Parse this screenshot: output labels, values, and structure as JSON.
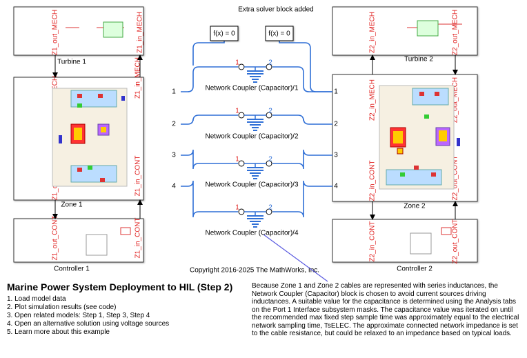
{
  "annotation": "Extra solver block added",
  "solver_blocks": [
    {
      "label": "f(x) = 0"
    },
    {
      "label": "f(x) = 0"
    }
  ],
  "blocks": {
    "turbine_1": {
      "label": "Turbine 1",
      "ports": [
        "Z1_out_MECH",
        "Z1_in_MECH"
      ]
    },
    "zone_1": {
      "label": "Zone 1",
      "ports": [
        "Z1_out_MECH",
        "Z1_in_MECH",
        "Z1_out_CONT",
        "Z1_in_CONT"
      ]
    },
    "controller_1": {
      "label": "Controller 1",
      "ports": [
        "Z1_out_CONT",
        "Z1_in_CONT"
      ]
    },
    "turbine_2": {
      "label": "Turbine 2",
      "ports": [
        "Z2_in_MECH",
        "Z2_out_MECH"
      ]
    },
    "zone_2": {
      "label": "Zone 2",
      "ports": [
        "Z2_in_MECH",
        "Z2_out_MECH",
        "Z2_in_CONT",
        "Z2_out_CONT"
      ]
    },
    "controller_2": {
      "label": "Controller 2",
      "ports": [
        "Z2_in_CONT",
        "Z2_out_CONT"
      ]
    }
  },
  "zone_ports": {
    "left": [
      "1",
      "2",
      "3",
      "4"
    ],
    "right": [
      "1",
      "2",
      "3",
      "4"
    ]
  },
  "couplers": [
    {
      "label": "Network Coupler (Capacitor)/1",
      "ports": [
        "1",
        "2"
      ]
    },
    {
      "label": "Network Coupler (Capacitor)/2",
      "ports": [
        "1",
        "2"
      ]
    },
    {
      "label": "Network Coupler (Capacitor)/3",
      "ports": [
        "1",
        "2"
      ]
    },
    {
      "label": "Network Coupler (Capacitor)/4",
      "ports": [
        "1",
        "2"
      ]
    }
  ],
  "copyright": "Copyright 2016-2025 The MathWorks, Inc.",
  "title": "Marine Power System Deployment to HIL (Step 2)",
  "steps": [
    "1. Load model data",
    "2. Plot simulation results (see code)",
    "3. Open related models: Step 1, Step 3, Step 4",
    "4. Open an alternative solution using voltage sources",
    "5. Learn more about this example"
  ],
  "description": "Because Zone 1 and Zone 2 cables are represented with series inductances, the Network Coupler (Capacitor) block is chosen to avoid current sources driving inductances. A suitable value for the capacitance is determined using the Analysis tabs on the Port 1 Interface subsystem masks. The capacitance value was iterated on until the recommended max fixed step sample time was approximately equal to the electrical network sampling time, TsELEC. The approximate connected network impedance is set to the cable resistance, but could be relaxed to an impedance based on typical loads."
}
